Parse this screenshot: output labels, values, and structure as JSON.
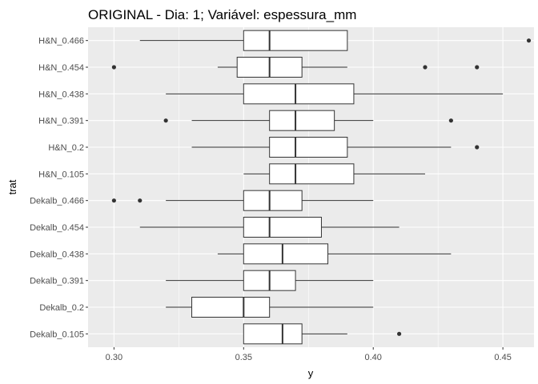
{
  "chart_data": {
    "type": "boxplot",
    "orientation": "horizontal",
    "title": "ORIGINAL - Dia: 1; Variável: espessura_mm",
    "xlabel": "y",
    "ylabel": "trat",
    "xlim": [
      0.29,
      0.462
    ],
    "x_ticks": [
      0.3,
      0.35,
      0.4,
      0.45
    ],
    "x_tick_labels": [
      "0.30",
      "0.35",
      "0.40",
      "0.45"
    ],
    "grid": true,
    "colors": {
      "panel": "#ebebeb",
      "grid": "#ffffff",
      "box_fill": "#ffffff",
      "stroke": "#333333"
    },
    "categories": [
      {
        "label": "H&N_0.466",
        "whisker_low": 0.31,
        "q1": 0.35,
        "median": 0.36,
        "q3": 0.39,
        "whisker_high": 0.39,
        "outliers": [
          0.46
        ]
      },
      {
        "label": "H&N_0.454",
        "whisker_low": 0.34,
        "q1": 0.3475,
        "median": 0.36,
        "q3": 0.3725,
        "whisker_high": 0.39,
        "outliers": [
          0.3,
          0.42,
          0.44
        ]
      },
      {
        "label": "H&N_0.438",
        "whisker_low": 0.32,
        "q1": 0.35,
        "median": 0.37,
        "q3": 0.3925,
        "whisker_high": 0.45,
        "outliers": []
      },
      {
        "label": "H&N_0.391",
        "whisker_low": 0.33,
        "q1": 0.36,
        "median": 0.37,
        "q3": 0.385,
        "whisker_high": 0.4,
        "outliers": [
          0.32,
          0.43
        ]
      },
      {
        "label": "H&N_0.2",
        "whisker_low": 0.33,
        "q1": 0.36,
        "median": 0.37,
        "q3": 0.39,
        "whisker_high": 0.43,
        "outliers": [
          0.44
        ]
      },
      {
        "label": "H&N_0.105",
        "whisker_low": 0.35,
        "q1": 0.36,
        "median": 0.37,
        "q3": 0.3925,
        "whisker_high": 0.42,
        "outliers": []
      },
      {
        "label": "Dekalb_0.466",
        "whisker_low": 0.32,
        "q1": 0.35,
        "median": 0.36,
        "q3": 0.3725,
        "whisker_high": 0.4,
        "outliers": [
          0.3,
          0.31
        ]
      },
      {
        "label": "Dekalb_0.454",
        "whisker_low": 0.31,
        "q1": 0.35,
        "median": 0.36,
        "q3": 0.38,
        "whisker_high": 0.41,
        "outliers": []
      },
      {
        "label": "Dekalb_0.438",
        "whisker_low": 0.34,
        "q1": 0.35,
        "median": 0.365,
        "q3": 0.3825,
        "whisker_high": 0.43,
        "outliers": []
      },
      {
        "label": "Dekalb_0.391",
        "whisker_low": 0.32,
        "q1": 0.35,
        "median": 0.36,
        "q3": 0.37,
        "whisker_high": 0.4,
        "outliers": []
      },
      {
        "label": "Dekalb_0.2",
        "whisker_low": 0.32,
        "q1": 0.33,
        "median": 0.35,
        "q3": 0.36,
        "whisker_high": 0.4,
        "outliers": []
      },
      {
        "label": "Dekalb_0.105",
        "whisker_low": 0.35,
        "q1": 0.35,
        "median": 0.365,
        "q3": 0.3725,
        "whisker_high": 0.39,
        "outliers": [
          0.41
        ]
      }
    ]
  }
}
